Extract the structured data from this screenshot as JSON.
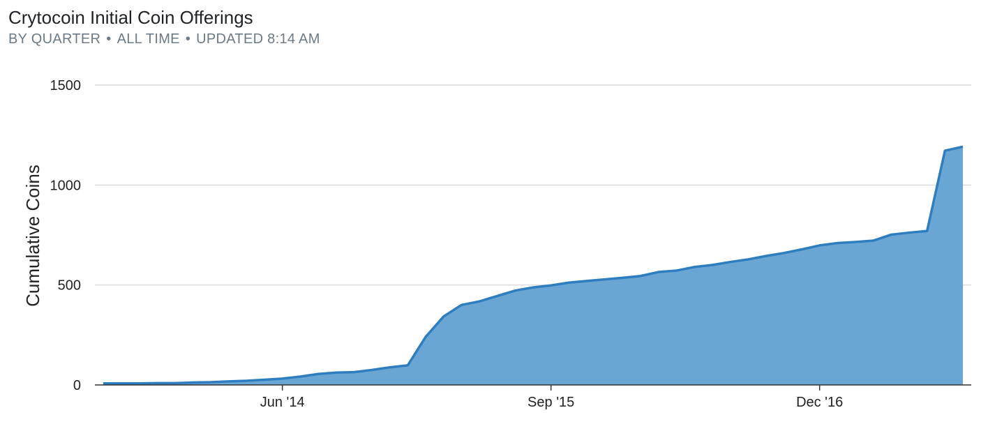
{
  "header": {
    "title": "Crytocoin Initial Coin Offerings",
    "subtitle_parts": [
      "BY QUARTER",
      "ALL TIME",
      "UPDATED 8:14 AM"
    ]
  },
  "chart_data": {
    "type": "area",
    "title": "Crytocoin Initial Coin Offerings",
    "subtitle": "BY QUARTER • ALL TIME • UPDATED 8:14 AM",
    "xlabel": "",
    "ylabel": "Cumulative Coins",
    "ylim": [
      0,
      1500
    ],
    "yticks": [
      0,
      500,
      1000,
      1500
    ],
    "xtick_labels": [
      "Jun '14",
      "Sep '15",
      "Dec '16"
    ],
    "grid": true,
    "legend": "none",
    "colors": {
      "fill": "#6aa6d4",
      "line": "#2e7dbf",
      "grid": "#dcdcdc",
      "axis": "#333333"
    },
    "points": [
      8,
      8,
      8,
      9,
      9,
      12,
      14,
      18,
      21,
      26,
      32,
      42,
      55,
      62,
      64,
      75,
      88,
      98,
      240,
      342,
      400,
      418,
      445,
      472,
      488,
      498,
      512,
      520,
      528,
      536,
      545,
      565,
      572,
      590,
      600,
      615,
      628,
      645,
      660,
      678,
      698,
      710,
      715,
      722,
      752,
      762,
      770,
      1172,
      1192
    ]
  }
}
